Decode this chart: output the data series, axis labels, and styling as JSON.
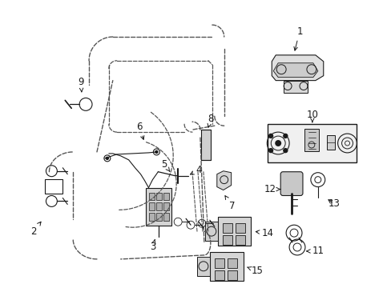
{
  "bg_color": "#ffffff",
  "line_color": "#1a1a1a",
  "dashed_color": "#444444",
  "figsize": [
    4.89,
    3.6
  ],
  "dpi": 100
}
